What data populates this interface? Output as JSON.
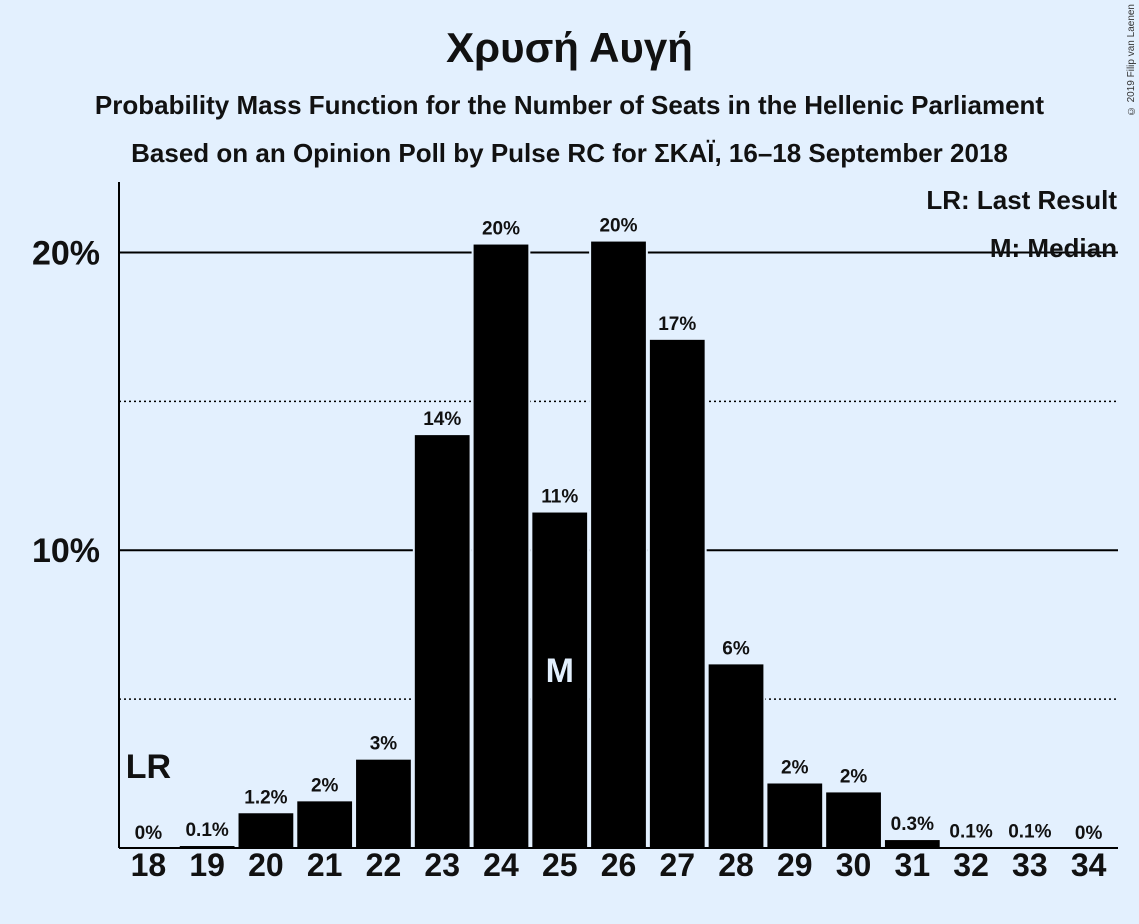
{
  "title": "Χρυσή Αυγή",
  "subtitle1": "Probability Mass Function for the Number of Seats in the Hellenic Parliament",
  "subtitle2": "Based on an Opinion Poll by Pulse RC for ΣΚΑΪ, 16–18 September 2018",
  "copyright": "© 2019 Filip van Laenen",
  "legend": {
    "lr": "LR: Last Result",
    "median": "M: Median"
  },
  "colors": {
    "background": "#e3f0fe",
    "bar": "#000000"
  },
  "chart_data": {
    "type": "bar",
    "categories": [
      "18",
      "19",
      "20",
      "21",
      "22",
      "23",
      "24",
      "25",
      "26",
      "27",
      "28",
      "29",
      "30",
      "31",
      "32",
      "33",
      "34"
    ],
    "values": [
      0,
      0.1,
      1.2,
      1.6,
      3.0,
      13.9,
      20.3,
      11.3,
      20.4,
      17.1,
      6.2,
      2.2,
      1.9,
      0.3,
      0.05,
      0.05,
      0
    ],
    "value_labels": [
      "0%",
      "0.1%",
      "1.2%",
      "2%",
      "3%",
      "14%",
      "20%",
      "11%",
      "20%",
      "17%",
      "6%",
      "2%",
      "2%",
      "0.3%",
      "0.1%",
      "0.1%",
      "0%"
    ],
    "y_ticks": [
      {
        "value": 10,
        "label": "10%",
        "style": "solid"
      },
      {
        "value": 20,
        "label": "20%",
        "style": "solid"
      }
    ],
    "minor_gridlines": [
      5,
      15
    ],
    "ylim": [
      0,
      22.3
    ],
    "last_result": {
      "category": "18",
      "label": "LR"
    },
    "median": {
      "category": "25",
      "label": "M"
    },
    "legend_position": "top-right"
  }
}
